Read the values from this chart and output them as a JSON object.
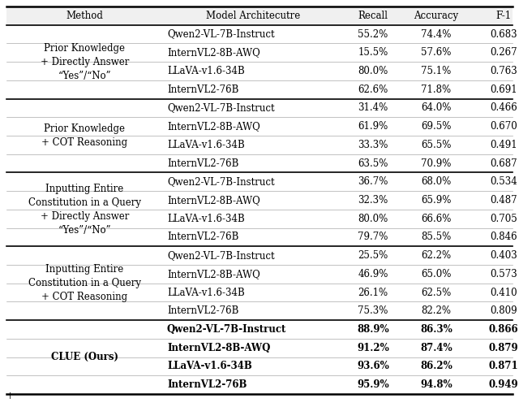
{
  "columns": [
    "Method",
    "Model Architecutre",
    "Recall",
    "Accuracy",
    "F-1"
  ],
  "groups": [
    {
      "method": "Prior Knowledge\n+ Directly Answer\n“Yes”/“No”",
      "models": [
        "Qwen2-VL-7B-Instruct",
        "InternVL2-8B-AWQ",
        "LLaVA-v1.6-34B",
        "InternVL2-76B"
      ],
      "recall": [
        "55.2%",
        "15.5%",
        "80.0%",
        "62.6%"
      ],
      "accuracy": [
        "74.4%",
        "57.6%",
        "75.1%",
        "71.8%"
      ],
      "f1": [
        "0.683",
        "0.267",
        "0.763",
        "0.691"
      ],
      "bold": false
    },
    {
      "method": "Prior Knowledge\n+ COT Reasoning",
      "models": [
        "Qwen2-VL-7B-Instruct",
        "InternVL2-8B-AWQ",
        "LLaVA-v1.6-34B",
        "InternVL2-76B"
      ],
      "recall": [
        "31.4%",
        "61.9%",
        "33.3%",
        "63.5%"
      ],
      "accuracy": [
        "64.0%",
        "69.5%",
        "65.5%",
        "70.9%"
      ],
      "f1": [
        "0.466",
        "0.670",
        "0.491",
        "0.687"
      ],
      "bold": false
    },
    {
      "method": "Inputting Entire\nConstitution in a Query\n+ Directly Answer\n“Yes”/“No”",
      "models": [
        "Qwen2-VL-7B-Instruct",
        "InternVL2-8B-AWQ",
        "LLaVA-v1.6-34B",
        "InternVL2-76B"
      ],
      "recall": [
        "36.7%",
        "32.3%",
        "80.0%",
        "79.7%"
      ],
      "accuracy": [
        "68.0%",
        "65.9%",
        "66.6%",
        "85.5%"
      ],
      "f1": [
        "0.534",
        "0.487",
        "0.705",
        "0.846"
      ],
      "bold": false
    },
    {
      "method": "Inputting Entire\nConstitution in a Query\n+ COT Reasoning",
      "models": [
        "Qwen2-VL-7B-Instruct",
        "InternVL2-8B-AWQ",
        "LLaVA-v1.6-34B",
        "InternVL2-76B"
      ],
      "recall": [
        "25.5%",
        "46.9%",
        "26.1%",
        "75.3%"
      ],
      "accuracy": [
        "62.2%",
        "65.0%",
        "62.5%",
        "82.2%"
      ],
      "f1": [
        "0.403",
        "0.573",
        "0.410",
        "0.809"
      ],
      "bold": false
    },
    {
      "method": "CLUE (Ours)",
      "models": [
        "Qwen2-VL-7B-Instruct",
        "InternVL2-8B-AWQ",
        "LLaVA-v1.6-34B",
        "InternVL2-76B"
      ],
      "recall": [
        "88.9%",
        "91.2%",
        "93.6%",
        "95.9%"
      ],
      "accuracy": [
        "86.3%",
        "87.4%",
        "86.2%",
        "94.8%"
      ],
      "f1": [
        "0.866",
        "0.879",
        "0.871",
        "0.949"
      ],
      "bold": true
    }
  ],
  "bg_color": "#ffffff",
  "text_color": "#000000",
  "font_size": 8.5,
  "caption_text": "†                                                                       "
}
